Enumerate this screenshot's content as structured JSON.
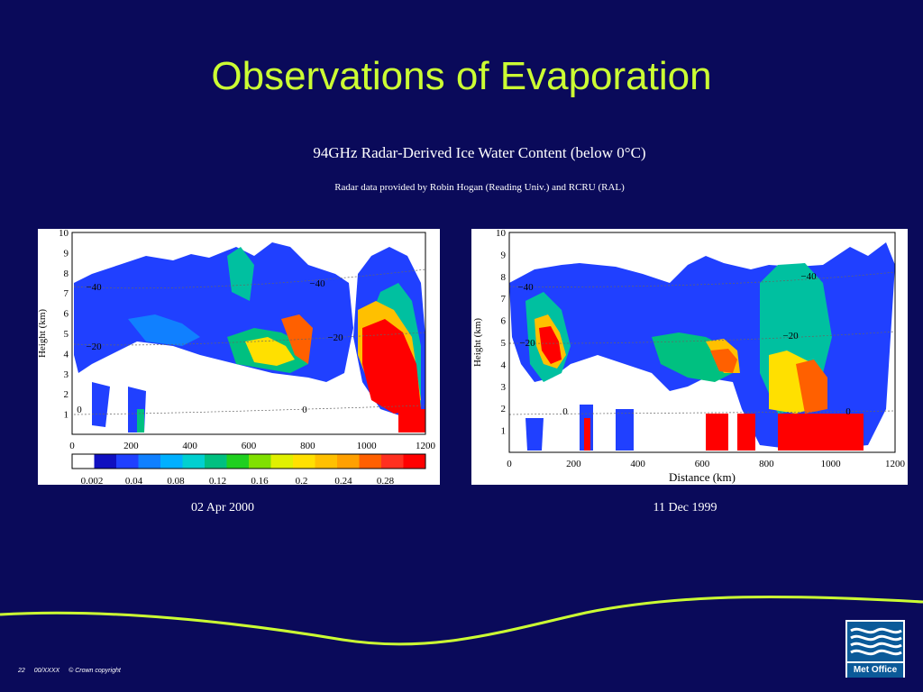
{
  "slide": {
    "title": "Observations of Evaporation",
    "subtitle": "94GHz Radar-Derived Ice Water Content (below 0°C)",
    "credit": "Radar data provided by Robin Hogan (Reading Univ.) and RCRU (RAL)"
  },
  "colors": {
    "background": "#0a0a5a",
    "title": "#ccff33",
    "wave": "#ccff33",
    "logo": "#0b5a99"
  },
  "left_panel": {
    "caption": "02 Apr 2000",
    "ylabel": "Height (km)",
    "yticks": [
      "1",
      "2",
      "3",
      "4",
      "5",
      "6",
      "7",
      "8",
      "9",
      "10"
    ],
    "xticks": [
      "0",
      "200",
      "400",
      "600",
      "800",
      "1000",
      "1200"
    ],
    "contour_labels": [
      "−40",
      "−40",
      "−20",
      "−20",
      "0",
      "0"
    ],
    "colorbar": {
      "ticks": [
        "0.002",
        "0.04",
        "0.08",
        "0.12",
        "0.16",
        "0.2",
        "0.24",
        "0.28"
      ],
      "colors": [
        "#ffffff",
        "#1010c0",
        "#2040ff",
        "#1080ff",
        "#00b0ff",
        "#00d0d0",
        "#00c080",
        "#20d020",
        "#80e000",
        "#e0f000",
        "#ffe000",
        "#ffc000",
        "#ffa000",
        "#ff6000",
        "#ff3020",
        "#ff0000"
      ]
    }
  },
  "right_panel": {
    "caption": "11 Dec 1999",
    "ylabel": "Height (km)",
    "xlabel": "Distance (km)",
    "yticks": [
      "1",
      "2",
      "3",
      "4",
      "5",
      "6",
      "7",
      "8",
      "9",
      "10"
    ],
    "xticks": [
      "0",
      "200",
      "400",
      "600",
      "800",
      "1000",
      "1200"
    ],
    "contour_labels": [
      "−40",
      "−40",
      "−20",
      "−20",
      "0",
      "0"
    ]
  },
  "footer": {
    "page": "22",
    "code": "00/XXXX",
    "copyright": "© Crown copyright"
  },
  "logo": {
    "text": "Met Office",
    "icon": "met-office-waves-icon"
  }
}
